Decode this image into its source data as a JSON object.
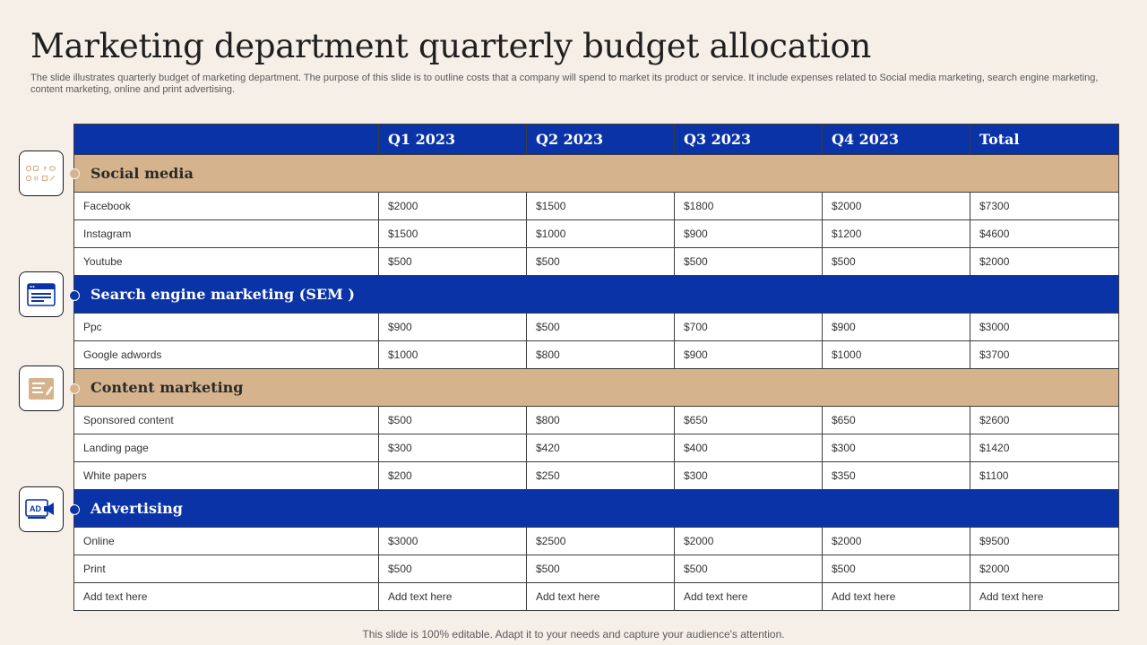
{
  "title": "Marketing department quarterly budget allocation",
  "subtitle": "The slide illustrates quarterly budget of marketing department. The purpose of this slide is to outline costs that a company will spend to market its product or service. It include expenses related to Social media marketing, search engine marketing, content marketing, online and print advertising.",
  "footer": "This slide is 100% editable. Adapt it to your needs and capture your audience's attention.",
  "colors": {
    "blue": "#0a33a8",
    "tan": "#d5b38d",
    "background": "#f6efe8"
  },
  "table": {
    "headers": [
      "",
      "Q1 2023",
      "Q2 2023",
      "Q3 2023",
      "Q4 2023",
      "Total"
    ],
    "sections": [
      {
        "name": "Social media",
        "icon": "social-media-icon",
        "rows": [
          [
            "Facebook",
            "$2000",
            "$1500",
            "$1800",
            "$2000",
            "$7300"
          ],
          [
            "Instagram",
            "$1500",
            "$1000",
            "$900",
            "$1200",
            "$4600"
          ],
          [
            "Youtube",
            "$500",
            "$500",
            "$500",
            "$500",
            "$2000"
          ]
        ]
      },
      {
        "name": "Search engine marketing (SEM )",
        "icon": "browser-window-icon",
        "rows": [
          [
            "Ppc",
            "$900",
            "$500",
            "$700",
            "$900",
            "$3000"
          ],
          [
            "Google adwords",
            "$1000",
            "$800",
            "$900",
            "$1000",
            "$3700"
          ]
        ]
      },
      {
        "name": "Content marketing",
        "icon": "content-document-icon",
        "rows": [
          [
            "Sponsored content",
            "$500",
            "$800",
            "$650",
            "$650",
            "$2600"
          ],
          [
            "Landing page",
            "$300",
            "$420",
            "$400",
            "$300",
            "$1420"
          ],
          [
            "White papers",
            "$200",
            "$250",
            "$300",
            "$350",
            "$1100"
          ]
        ]
      },
      {
        "name": "Advertising",
        "icon": "ad-megaphone-icon",
        "icon_text": "AD",
        "rows": [
          [
            "Online",
            "$3000",
            "$2500",
            "$2000",
            "$2000",
            "$9500"
          ],
          [
            "Print",
            "$500",
            "$500",
            "$500",
            "$500",
            "$2000"
          ],
          [
            "Add text here",
            "Add text here",
            "Add text here",
            "Add text here",
            "Add text here",
            "Add text here"
          ]
        ]
      }
    ]
  }
}
